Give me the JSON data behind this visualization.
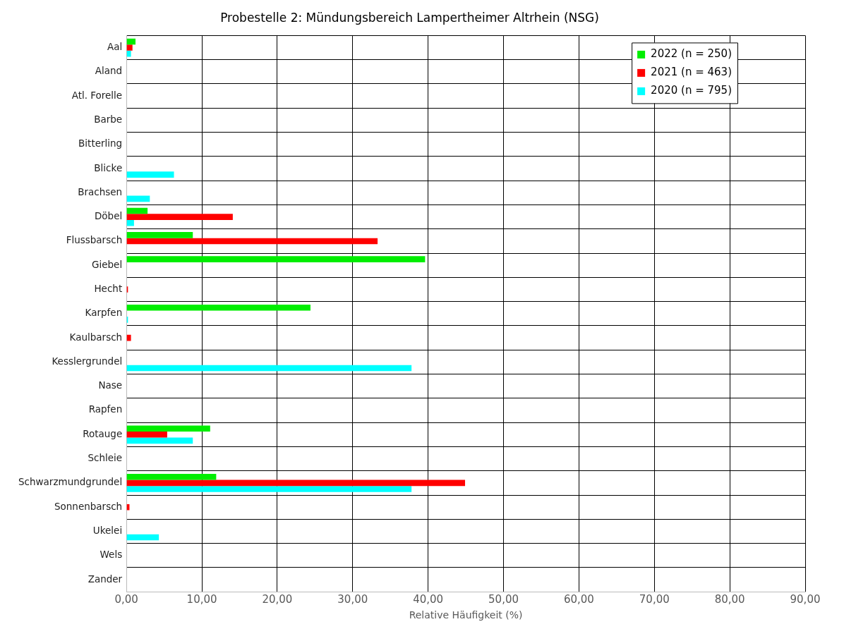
{
  "chart_data": {
    "type": "bar",
    "orientation": "horizontal",
    "title": "Probestelle 2: Mündungsbereich Lampertheimer Altrhein (NSG)",
    "xlabel": "Relative Häufigkeit (%)",
    "categories": [
      "Aal",
      "Aland",
      "Atl. Forelle",
      "Barbe",
      "Bitterling",
      "Blicke",
      "Brachsen",
      "Döbel",
      "Flussbarsch",
      "Giebel",
      "Hecht",
      "Karpfen",
      "Kaulbarsch",
      "Kesslergrundel",
      "Nase",
      "Rapfen",
      "Rotauge",
      "Schleie",
      "Schwarzmundgrundel",
      "Sonnenbarsch",
      "Ukelei",
      "Wels",
      "Zander"
    ],
    "series": [
      {
        "name": "2022 (n = 250)",
        "color": "#00ee00",
        "values": [
          1.2,
          0,
          0,
          0,
          0,
          0,
          0,
          2.8,
          8.8,
          39.6,
          0,
          24.4,
          0,
          0,
          0,
          0,
          11.1,
          0,
          11.9,
          0,
          0,
          0,
          0
        ]
      },
      {
        "name": "2021 (n = 463)",
        "color": "#ff0000",
        "values": [
          0.8,
          0,
          0,
          0,
          0,
          0,
          0,
          14.1,
          33.3,
          0,
          0.2,
          0,
          0.6,
          0,
          0,
          0,
          5.4,
          0,
          44.9,
          0.4,
          0,
          0,
          0
        ]
      },
      {
        "name": "2020 (n = 795)",
        "color": "#00ffff",
        "values": [
          0.6,
          0,
          0,
          0,
          0,
          6.3,
          3.1,
          1.0,
          0,
          0,
          0,
          0.2,
          0,
          37.8,
          0,
          0,
          8.8,
          0,
          37.8,
          0,
          4.3,
          0,
          0
        ]
      }
    ],
    "xlim": [
      0,
      90
    ],
    "xticks": [
      {
        "value": 0,
        "label": "0,00"
      },
      {
        "value": 10,
        "label": "10,00"
      },
      {
        "value": 20,
        "label": "20,00"
      },
      {
        "value": 30,
        "label": "30,00"
      },
      {
        "value": 40,
        "label": "40,00"
      },
      {
        "value": 50,
        "label": "50,00"
      },
      {
        "value": 60,
        "label": "60,00"
      },
      {
        "value": 70,
        "label": "70,00"
      },
      {
        "value": 80,
        "label": "80,00"
      },
      {
        "value": 90,
        "label": "90,00"
      }
    ],
    "grid": true,
    "legend": "top right"
  }
}
